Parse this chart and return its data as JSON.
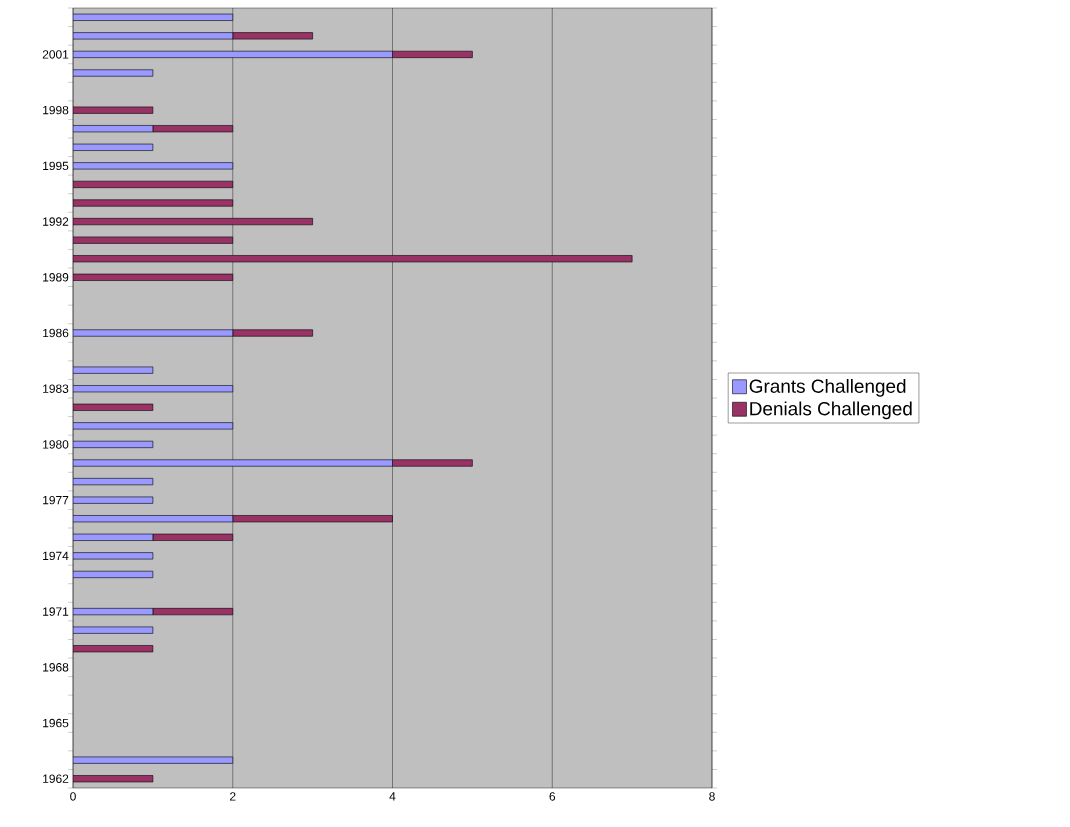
{
  "chart_data": {
    "type": "bar",
    "orientation": "horizontal",
    "stacked": true,
    "categories": [
      null,
      null,
      "2001",
      null,
      null,
      "1998",
      null,
      null,
      "1995",
      null,
      null,
      "1992",
      null,
      null,
      "1989",
      null,
      null,
      "1986",
      null,
      null,
      "1983",
      null,
      null,
      "1980",
      null,
      null,
      "1977",
      null,
      null,
      "1974",
      null,
      null,
      "1971",
      null,
      null,
      "1968",
      null,
      null,
      "1965",
      null,
      null,
      "1962"
    ],
    "series": [
      {
        "name": "Grants Challenged",
        "color": "#9999ff",
        "values": [
          2,
          2,
          4,
          1,
          null,
          null,
          1,
          1,
          2,
          null,
          null,
          null,
          null,
          null,
          null,
          null,
          null,
          2,
          null,
          1,
          2,
          null,
          2,
          1,
          4,
          1,
          1,
          2,
          1,
          1,
          1,
          null,
          1,
          1,
          null,
          null,
          null,
          null,
          null,
          null,
          2,
          null
        ]
      },
      {
        "name": "Denials Challenged",
        "color": "#993366",
        "values": [
          null,
          1,
          1,
          null,
          null,
          1,
          1,
          null,
          null,
          2,
          2,
          3,
          2,
          7,
          2,
          null,
          null,
          1,
          null,
          null,
          null,
          1,
          null,
          null,
          1,
          null,
          null,
          2,
          1,
          null,
          null,
          null,
          1,
          null,
          1,
          null,
          null,
          null,
          null,
          null,
          null,
          1
        ]
      }
    ],
    "xlim": [
      0,
      8
    ],
    "xticks": [
      0,
      2,
      4,
      6,
      8
    ],
    "grid": "x",
    "legend": "right"
  }
}
